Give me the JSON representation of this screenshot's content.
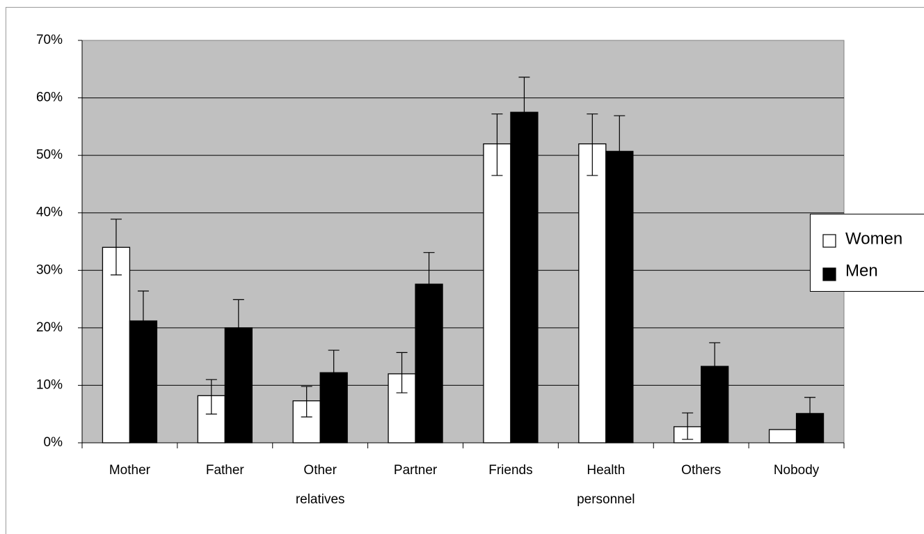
{
  "chart_data": {
    "type": "bar",
    "categories": [
      [
        "Mother"
      ],
      [
        "Father"
      ],
      [
        "Other",
        "relatives"
      ],
      [
        "Partner"
      ],
      [
        "Friends"
      ],
      [
        "Health",
        "personnel"
      ],
      [
        "Others"
      ],
      [
        "Nobody"
      ]
    ],
    "series": [
      {
        "name": "Women",
        "color": "#ffffff",
        "values": [
          34,
          8.2,
          7.3,
          12,
          52,
          52,
          2.8,
          2.3
        ],
        "error_low": [
          29.2,
          5,
          4.5,
          8.7,
          46.5,
          46.5,
          0.6,
          null
        ],
        "error_high": [
          38.9,
          11,
          9.8,
          15.7,
          57.2,
          57.2,
          5.2,
          null
        ]
      },
      {
        "name": "Men",
        "color": "#000000",
        "values": [
          21.2,
          20,
          12.2,
          27.6,
          57.5,
          50.7,
          13.3,
          5.1
        ],
        "error_low": [
          null,
          null,
          null,
          null,
          null,
          null,
          null,
          null
        ],
        "error_high": [
          26.4,
          24.9,
          16.1,
          33.1,
          63.6,
          56.9,
          17.4,
          7.9
        ]
      }
    ],
    "ylim": [
      0,
      70
    ],
    "yticks": [
      "0%",
      "10%",
      "20%",
      "30%",
      "40%",
      "50%",
      "60%",
      "70%"
    ],
    "plot_background": "#c0c0c0",
    "grid": true,
    "legend_position": "right"
  }
}
